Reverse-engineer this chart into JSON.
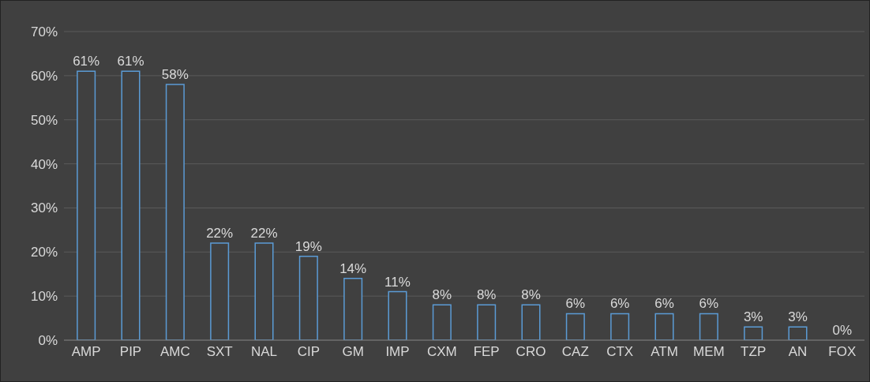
{
  "chart_data": {
    "type": "bar",
    "categories": [
      "AMP",
      "PIP",
      "AMC",
      "SXT",
      "NAL",
      "CIP",
      "GM",
      "IMP",
      "CXM",
      "FEP",
      "CRO",
      "CAZ",
      "CTX",
      "ATM",
      "MEM",
      "TZP",
      "AN",
      "FOX"
    ],
    "values": [
      61,
      61,
      58,
      22,
      22,
      19,
      14,
      11,
      8,
      8,
      8,
      6,
      6,
      6,
      6,
      3,
      3,
      0
    ],
    "value_labels": [
      "61%",
      "61%",
      "58%",
      "22%",
      "22%",
      "19%",
      "14%",
      "11%",
      "8%",
      "8%",
      "8%",
      "6%",
      "6%",
      "6%",
      "6%",
      "3%",
      "3%",
      "0%"
    ],
    "color": "#5b9bd5",
    "ylim": [
      0,
      70
    ],
    "yticks": [
      {
        "value": 0,
        "label": "0%"
      },
      {
        "value": 10,
        "label": "10%"
      },
      {
        "value": 20,
        "label": "20%"
      },
      {
        "value": 30,
        "label": "30%"
      },
      {
        "value": 40,
        "label": "40%"
      },
      {
        "value": 50,
        "label": "50%"
      },
      {
        "value": 60,
        "label": "60%"
      },
      {
        "value": 70,
        "label": "70%"
      }
    ],
    "grid": "y",
    "legend": false
  }
}
